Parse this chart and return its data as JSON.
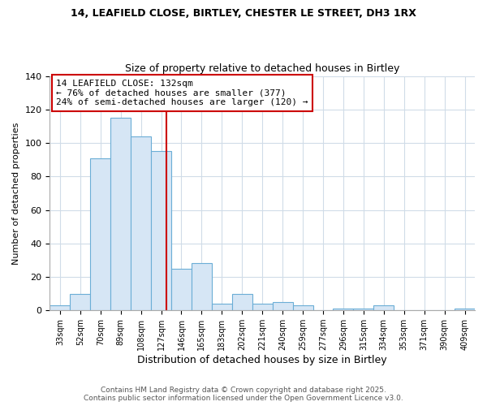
{
  "title1": "14, LEAFIELD CLOSE, BIRTLEY, CHESTER LE STREET, DH3 1RX",
  "title2": "Size of property relative to detached houses in Birtley",
  "xlabel": "Distribution of detached houses by size in Birtley",
  "ylabel": "Number of detached properties",
  "categories": [
    "33sqm",
    "52sqm",
    "70sqm",
    "89sqm",
    "108sqm",
    "127sqm",
    "146sqm",
    "165sqm",
    "183sqm",
    "202sqm",
    "221sqm",
    "240sqm",
    "259sqm",
    "277sqm",
    "296sqm",
    "315sqm",
    "334sqm",
    "353sqm",
    "371sqm",
    "390sqm",
    "409sqm"
  ],
  "values": [
    3,
    10,
    91,
    115,
    104,
    95,
    25,
    28,
    4,
    10,
    4,
    5,
    3,
    0,
    1,
    1,
    3,
    0,
    0,
    0,
    1
  ],
  "bar_color": "#d6e6f5",
  "bar_edge_color": "#6baed6",
  "vline_color": "#cc0000",
  "annotation_text": "14 LEAFIELD CLOSE: 132sqm\n← 76% of detached houses are smaller (377)\n24% of semi-detached houses are larger (120) →",
  "annotation_box_facecolor": "#ffffff",
  "annotation_box_edgecolor": "#cc0000",
  "ylim": [
    0,
    140
  ],
  "yticks": [
    0,
    20,
    40,
    60,
    80,
    100,
    120,
    140
  ],
  "footer1": "Contains HM Land Registry data © Crown copyright and database right 2025.",
  "footer2": "Contains public sector information licensed under the Open Government Licence v3.0.",
  "bg_color": "#ffffff",
  "plot_bg_color": "#ffffff",
  "grid_color": "#d0dce8"
}
